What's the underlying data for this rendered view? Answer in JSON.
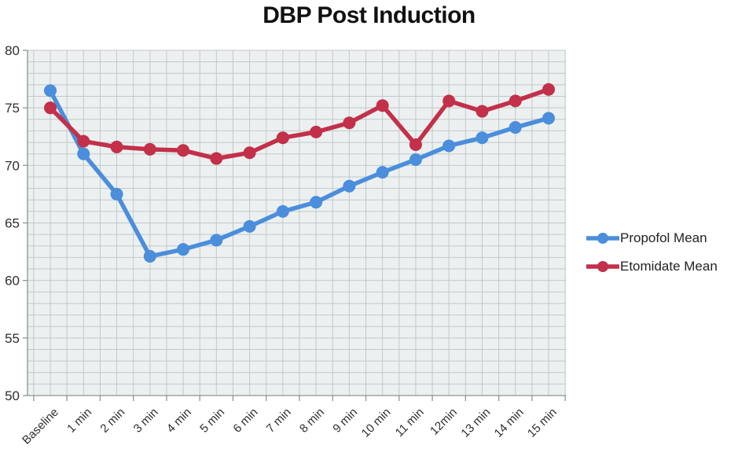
{
  "chart_data": {
    "type": "line",
    "title": "DBP Post Induction",
    "categories": [
      "Baseline",
      "1 min",
      "2 min",
      "3 min",
      "4 min",
      "5 min",
      "6 min",
      "7 min",
      "8 min",
      "9 min",
      "10 min",
      "11 min",
      "12min",
      "13 min",
      "14 min",
      "15 min"
    ],
    "series": [
      {
        "name": "Propofol Mean",
        "color": "#4a8edc",
        "values": [
          76.5,
          71.0,
          67.5,
          62.1,
          62.7,
          63.5,
          64.7,
          66.0,
          66.8,
          68.2,
          69.4,
          70.5,
          71.7,
          72.4,
          73.3,
          74.1
        ]
      },
      {
        "name": "Etomidate Mean",
        "color": "#c2304a",
        "values": [
          75.0,
          72.1,
          71.6,
          71.4,
          71.3,
          70.6,
          71.1,
          72.4,
          72.9,
          73.7,
          75.2,
          71.8,
          75.6,
          74.7,
          75.6,
          76.6
        ]
      }
    ],
    "ylim": [
      50,
      80
    ],
    "y_tick_step": 5,
    "y_tick_labels": [
      "50",
      "55",
      "60",
      "65",
      "70",
      "75",
      "80"
    ],
    "y_minor_grid_step": 1,
    "x_minor_grid_per_category": 2,
    "grid": true,
    "legend_position": "right"
  },
  "colors": {
    "plot_bg": "#edf0f0",
    "grid": "#bfc9c9",
    "axis": "#8a9595",
    "tick_label": "#2e2e2e",
    "title": "#111111"
  }
}
